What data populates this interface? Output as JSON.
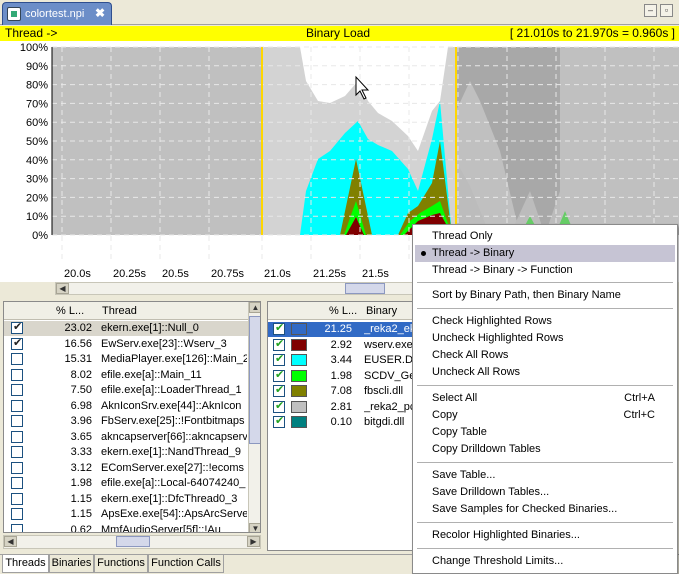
{
  "editor": {
    "tab_label": "colortest.npi",
    "close_glyph": "✖",
    "minimize_glyph": "–",
    "restore_glyph": "▫"
  },
  "header": {
    "left": "Thread ->",
    "center": "Binary Load",
    "right": "[ 21.010s to 21.970s = 0.960s ]"
  },
  "chart_data": {
    "type": "area",
    "y_ticks": [
      "100%",
      "90%",
      "80%",
      "70%",
      "60%",
      "50%",
      "40%",
      "30%",
      "20%",
      "10%",
      "0%"
    ],
    "x_ticks": [
      "20.0s",
      "20.25s",
      "20.5s",
      "20.75s",
      "21.0s",
      "21.25s",
      "21.5s"
    ],
    "ylim": [
      0,
      100
    ],
    "selection": {
      "start": 21.01,
      "end": 21.97
    },
    "colors": {
      "background": "#c0c0c0",
      "selected_bg": "#ffffff",
      "ekern": "#d3d3d3",
      "euser": "#00ffff",
      "fbscli": "#808000",
      "scdv": "#00ff00",
      "wserv": "#800000",
      "highlight": "#316ac5",
      "selection_border": "#ffd700"
    },
    "series": [
      {
        "name": "EUSER.DLL",
        "color": "#00ffff"
      },
      {
        "name": "fbscli.dll",
        "color": "#808000"
      },
      {
        "name": "SCDV_Gen",
        "color": "#00ff00"
      },
      {
        "name": "wserv.exe",
        "color": "#800000"
      }
    ]
  },
  "threads_table": {
    "headers": [
      "% L...",
      "Thread"
    ],
    "rows": [
      {
        "checked": true,
        "pct": "23.02",
        "name": "ekern.exe[1]::Null_0"
      },
      {
        "checked": true,
        "pct": "16.56",
        "name": "EwServ.exe[23]::Wserv_3"
      },
      {
        "checked": false,
        "pct": "15.31",
        "name": "MediaPlayer.exe[126]::Main_2"
      },
      {
        "checked": false,
        "pct": "8.02",
        "name": "efile.exe[a]::Main_11"
      },
      {
        "checked": false,
        "pct": "7.50",
        "name": "efile.exe[a]::LoaderThread_1"
      },
      {
        "checked": false,
        "pct": "6.98",
        "name": "AknIconSrv.exe[44]::AknIcon"
      },
      {
        "checked": false,
        "pct": "3.96",
        "name": "FbServ.exe[25]::!Fontbitmaps"
      },
      {
        "checked": false,
        "pct": "3.65",
        "name": "akncapserver[66]::akncapserv"
      },
      {
        "checked": false,
        "pct": "3.33",
        "name": "ekern.exe[1]::NandThread_9"
      },
      {
        "checked": false,
        "pct": "3.12",
        "name": "EComServer.exe[27]::!ecoms"
      },
      {
        "checked": false,
        "pct": "1.98",
        "name": "efile.exe[a]::Local-64074240_"
      },
      {
        "checked": false,
        "pct": "1.15",
        "name": "ekern.exe[1]::DfcThread0_3"
      },
      {
        "checked": false,
        "pct": "1.15",
        "name": "ApsExe.exe[54]::ApsArcServe"
      },
      {
        "checked": false,
        "pct": "0.62",
        "name": "MmfAudioServer[5f]::!Au"
      }
    ]
  },
  "binaries_table": {
    "headers": [
      "% L...",
      "Binary"
    ],
    "rows": [
      {
        "checked": true,
        "color": "#316ac5",
        "pct": "21.25",
        "name": "_reka2_ek"
      },
      {
        "checked": true,
        "color": "#800000",
        "pct": "2.92",
        "name": "wserv.exe"
      },
      {
        "checked": true,
        "color": "#00ffff",
        "pct": "3.44",
        "name": "EUSER.DLL"
      },
      {
        "checked": true,
        "color": "#00ff00",
        "pct": "1.98",
        "name": "SCDV_Gen"
      },
      {
        "checked": true,
        "color": "#808000",
        "pct": "7.08",
        "name": "fbscli.dll"
      },
      {
        "checked": true,
        "color": "#c0c0c0",
        "pct": "2.81",
        "name": "_reka2_pc"
      },
      {
        "checked": true,
        "color": "#008080",
        "pct": "0.10",
        "name": "bitgdi.dll"
      }
    ]
  },
  "bottom_tabs": [
    "Threads",
    "Binaries",
    "Functions",
    "Function Calls"
  ],
  "context_menu": {
    "items": [
      {
        "label": "Thread Only",
        "shortcut": ""
      },
      {
        "label": "Thread -> Binary",
        "shortcut": "",
        "selected": true
      },
      {
        "label": "Thread -> Binary -> Function",
        "shortcut": ""
      },
      {
        "label": "Sort by Binary Path, then Binary Name",
        "shortcut": ""
      },
      {
        "label": "Check Highlighted Rows",
        "shortcut": ""
      },
      {
        "label": "Uncheck Highlighted Rows",
        "shortcut": ""
      },
      {
        "label": "Check All Rows",
        "shortcut": ""
      },
      {
        "label": "Uncheck All Rows",
        "shortcut": ""
      },
      {
        "label": "Select All",
        "shortcut": "Ctrl+A"
      },
      {
        "label": "Copy",
        "shortcut": "Ctrl+C"
      },
      {
        "label": "Copy Table",
        "shortcut": ""
      },
      {
        "label": "Copy Drilldown Tables",
        "shortcut": ""
      },
      {
        "label": "Save Table...",
        "shortcut": ""
      },
      {
        "label": "Save Drilldown Tables...",
        "shortcut": ""
      },
      {
        "label": "Save Samples for Checked Binaries...",
        "shortcut": ""
      },
      {
        "label": "Recolor Highlighted Binaries...",
        "shortcut": ""
      },
      {
        "label": "Change Threshold Limits...",
        "shortcut": ""
      }
    ]
  }
}
